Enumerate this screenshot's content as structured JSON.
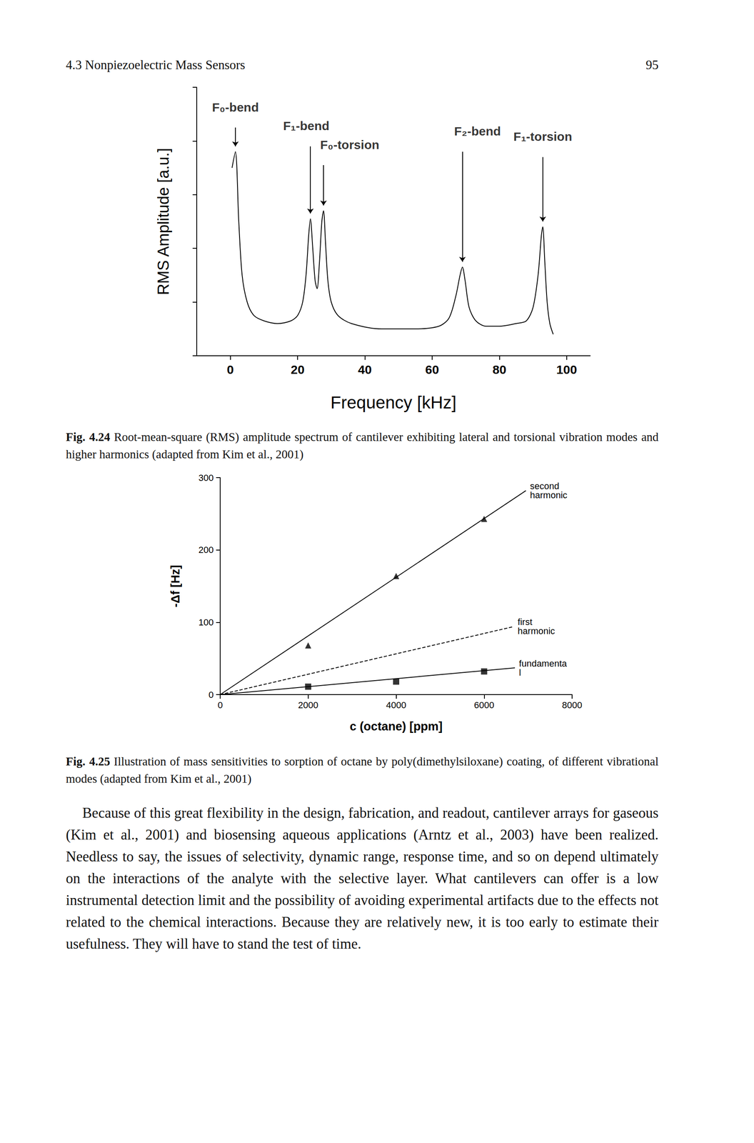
{
  "header": {
    "section": "4.3 Nonpiezoelectric Mass Sensors",
    "page": "95"
  },
  "chart_data": [
    {
      "type": "line",
      "x_label": "Frequency [kHz]",
      "y_label": "RMS Amplitude [a.u.]",
      "xlim": [
        -10,
        107
      ],
      "xticks": [
        0,
        20,
        40,
        60,
        80,
        100
      ],
      "ylim": [
        0,
        1
      ],
      "yticks": [
        0,
        0.2,
        0.4,
        0.6,
        0.8,
        1
      ],
      "tick_labels": "x",
      "grid": false,
      "series": [
        {
          "color": "#000000",
          "x": [
            0.5,
            1.5,
            2.5,
            3.5,
            5,
            7,
            10,
            14,
            18,
            20,
            21.5,
            22.5,
            23.3,
            23.8,
            24.5,
            25.2,
            25.8,
            26.5,
            27.2,
            27.7,
            28.3,
            29,
            30,
            32,
            36,
            45,
            55,
            62,
            65,
            67,
            68.3,
            69,
            69.8,
            71,
            73,
            76,
            80,
            85,
            88,
            90,
            91.5,
            92.5,
            92.9,
            93.5,
            94.2,
            95,
            96
          ],
          "values": [
            0.7,
            0.76,
            0.5,
            0.3,
            0.2,
            0.15,
            0.13,
            0.12,
            0.13,
            0.15,
            0.2,
            0.3,
            0.45,
            0.51,
            0.4,
            0.28,
            0.25,
            0.35,
            0.5,
            0.54,
            0.42,
            0.28,
            0.2,
            0.15,
            0.12,
            0.1,
            0.1,
            0.11,
            0.14,
            0.22,
            0.3,
            0.33,
            0.28,
            0.18,
            0.13,
            0.11,
            0.11,
            0.12,
            0.13,
            0.18,
            0.3,
            0.45,
            0.48,
            0.35,
            0.2,
            0.12,
            0.08
          ]
        }
      ],
      "annotations": [
        {
          "text": "F₀-bend",
          "x": 1.5
        },
        {
          "text": "F₁-bend",
          "x": 23.8
        },
        {
          "text": "F₀-torsion",
          "x": 27.7
        },
        {
          "text": "F₂-bend",
          "x": 69
        },
        {
          "text": "F₁-torsion",
          "x": 92.9
        }
      ]
    },
    {
      "type": "scatter",
      "x_label": "c (octane) [ppm]",
      "y_label": "-Δf [Hz]",
      "xlim": [
        0,
        8000
      ],
      "xticks": [
        0,
        2000,
        4000,
        6000,
        8000
      ],
      "ylim": [
        0,
        300
      ],
      "yticks": [
        0,
        100,
        200,
        300
      ],
      "grid": false,
      "series": [
        {
          "name": "second harmonic",
          "color": "#000000",
          "marker": "triangle",
          "line_style": "solid",
          "x": [
            2000,
            4000,
            6000
          ],
          "values": [
            68,
            164,
            243
          ],
          "fit_x": [
            0,
            6950
          ],
          "fit_values": [
            0,
            282
          ]
        },
        {
          "name": "first harmonic",
          "color": "#000000",
          "marker": "none",
          "line_style": "dashed",
          "x": [],
          "values": [],
          "fit_x": [
            0,
            6670
          ],
          "fit_values": [
            0,
            94
          ]
        },
        {
          "name": "fundamental",
          "color": "#000000",
          "marker": "square",
          "line_style": "solid",
          "x": [
            2000,
            4000,
            6000
          ],
          "values": [
            11,
            18,
            32
          ],
          "fit_x": [
            0,
            6700
          ],
          "fit_values": [
            0,
            37
          ]
        }
      ]
    }
  ],
  "captions": [
    {
      "label": "Fig. 4.24",
      "text": "Root-mean-square (RMS) amplitude spectrum of cantilever exhibiting lateral and torsional vibration modes and higher harmonics (adapted from Kim et al., 2001)"
    },
    {
      "label": "Fig. 4.25",
      "text": "Illustration of mass sensitivities to sorption of octane by poly(dimethylsiloxane) coating, of different vibrational modes (adapted from Kim et al., 2001)"
    }
  ],
  "body": "Because of this great flexibility in the design, fabrication, and readout, cantilever arrays for gaseous (Kim et al., 2001) and biosensing aqueous applications (Arntz et al., 2003) have been realized. Needless to say, the issues of selectivity, dynamic range, response time, and so on depend ultimately on the interactions of the analyte with the selective layer. What cantilevers can offer is a low instrumental detection limit and the possibility of avoiding experimental artifacts due to the effects not related to the chemical interactions. Because they are relatively new, it is too early to estimate their usefulness. They will have to stand the test of time."
}
